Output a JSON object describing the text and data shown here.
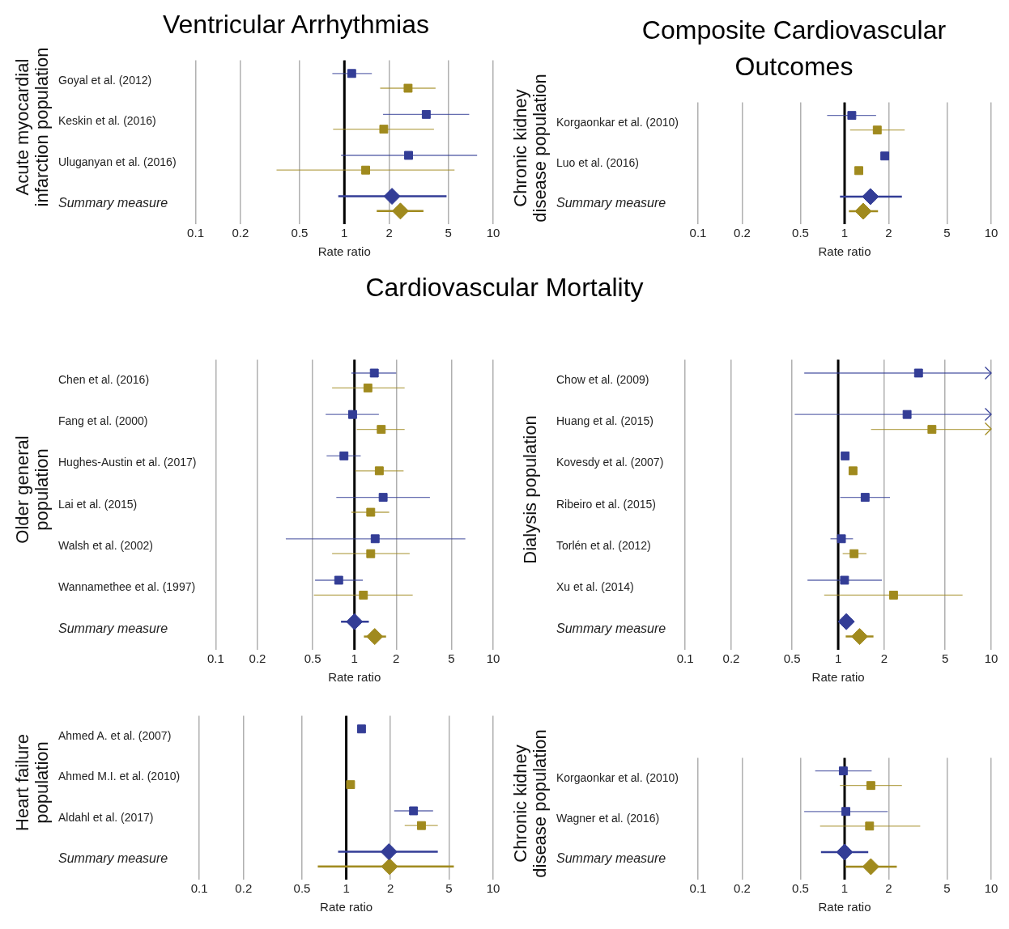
{
  "chart_data": [
    {
      "type": "scatter",
      "orientation": "horizontal",
      "title": "Ventricular Arrhythmias",
      "ylabel": "Acute myocardial infarction population",
      "xlabel": "Rate ratio",
      "log": "x",
      "grid": "x",
      "xlim": [
        0.1,
        10
      ],
      "xticks": [
        0.1,
        0.2,
        0.5,
        1,
        2,
        5,
        10
      ],
      "ref_lines": [
        {
          "axis": "x",
          "value": 1
        }
      ],
      "categories": [
        "Goyal et al. (2012)",
        "Keskin et al. (2016)",
        "Uluganyan et al. (2016)",
        "Summary measure"
      ],
      "series": [
        {
          "color": "#333d96",
          "marker": "square",
          "values": [
            1.12,
            3.55,
            2.7,
            null
          ],
          "errors": [
            [
              0.83,
              1.53
            ],
            [
              1.82,
              6.9
            ],
            [
              0.95,
              7.8
            ],
            null
          ]
        },
        {
          "color": "#a08a1e",
          "marker": "square",
          "values": [
            2.68,
            1.84,
            1.39,
            null
          ],
          "errors": [
            [
              1.74,
              4.1
            ],
            [
              0.84,
              4.0
            ],
            [
              0.35,
              5.5
            ],
            null
          ]
        },
        {
          "color": "#333d96",
          "marker": "diamond",
          "values": [
            null,
            null,
            null,
            2.09
          ],
          "errors": [
            null,
            null,
            null,
            [
              0.91,
              4.86
            ]
          ]
        },
        {
          "color": "#a08a1e",
          "marker": "diamond",
          "values": [
            null,
            null,
            null,
            2.38
          ],
          "errors": [
            null,
            null,
            null,
            [
              1.65,
              3.4
            ]
          ]
        }
      ]
    },
    {
      "type": "scatter",
      "orientation": "horizontal",
      "title": "Composite Cardiovascular Outcomes",
      "ylabel": "Chronic kidney disease population",
      "xlabel": "Rate ratio",
      "log": "x",
      "grid": "x",
      "xlim": [
        0.1,
        10
      ],
      "xticks": [
        0.1,
        0.2,
        0.5,
        1,
        2,
        5,
        10
      ],
      "ref_lines": [
        {
          "axis": "x",
          "value": 1
        }
      ],
      "categories": [
        "Korgaonkar et al. (2010)",
        "Luo et al. (2016)",
        "Summary measure"
      ],
      "series": [
        {
          "color": "#333d96",
          "marker": "square",
          "values": [
            1.12,
            1.88,
            null
          ],
          "errors": [
            [
              0.76,
              1.64
            ],
            null,
            null
          ]
        },
        {
          "color": "#a08a1e",
          "marker": "square",
          "values": [
            1.67,
            1.25,
            null
          ],
          "errors": [
            [
              1.09,
              2.57
            ],
            null,
            null
          ]
        },
        {
          "color": "#333d96",
          "marker": "diamond",
          "values": [
            null,
            null,
            1.5
          ],
          "errors": [
            null,
            null,
            [
              0.93,
              2.46
            ]
          ]
        },
        {
          "color": "#a08a1e",
          "marker": "diamond",
          "values": [
            null,
            null,
            1.34
          ],
          "errors": [
            null,
            null,
            [
              1.07,
              1.69
            ]
          ]
        }
      ]
    },
    {
      "type": "scatter",
      "orientation": "horizontal",
      "title": "Cardiovascular Mortality",
      "ylabel": "Older general population",
      "xlabel": "Rate ratio",
      "log": "x",
      "grid": "x",
      "xlim": [
        0.1,
        10
      ],
      "xticks": [
        0.1,
        0.2,
        0.5,
        1,
        2,
        5,
        10
      ],
      "ref_lines": [
        {
          "axis": "x",
          "value": 1
        }
      ],
      "categories": [
        "Chen et al. (2016)",
        "Fang et al. (2000)",
        "Hughes-Austin et al. (2017)",
        "Lai et al. (2015)",
        "Walsh et al. (2002)",
        "Wannamethee et al. (1997)",
        "Summary measure"
      ],
      "series": [
        {
          "color": "#333d96",
          "marker": "square",
          "values": [
            1.39,
            0.97,
            0.84,
            1.61,
            1.41,
            0.77,
            null
          ],
          "errors": [
            [
              0.95,
              2.0
            ],
            [
              0.62,
              1.5
            ],
            [
              0.63,
              1.11
            ],
            [
              0.74,
              3.5
            ],
            [
              0.32,
              6.3
            ],
            [
              0.52,
              1.15
            ],
            null
          ]
        },
        {
          "color": "#a08a1e",
          "marker": "square",
          "values": [
            1.25,
            1.56,
            1.51,
            1.31,
            1.31,
            1.16,
            null
          ],
          "errors": [
            [
              0.69,
              2.3
            ],
            [
              1.04,
              2.3
            ],
            [
              1.01,
              2.26
            ],
            [
              0.95,
              1.78
            ],
            [
              0.69,
              2.5
            ],
            [
              0.51,
              2.63
            ],
            null
          ]
        },
        {
          "color": "#333d96",
          "marker": "diamond",
          "values": [
            null,
            null,
            null,
            null,
            null,
            null,
            1.0
          ],
          "errors": [
            null,
            null,
            null,
            null,
            null,
            null,
            [
              0.8,
              1.27
            ]
          ]
        },
        {
          "color": "#a08a1e",
          "marker": "diamond",
          "values": [
            null,
            null,
            null,
            null,
            null,
            null,
            1.4
          ],
          "errors": [
            null,
            null,
            null,
            null,
            null,
            null,
            [
              1.17,
              1.69
            ]
          ]
        }
      ]
    },
    {
      "type": "scatter",
      "orientation": "horizontal",
      "ylabel": "Dialysis population",
      "xlabel": "Rate ratio",
      "log": "x",
      "grid": "x",
      "xlim": [
        0.1,
        10
      ],
      "xticks": [
        0.1,
        0.2,
        0.5,
        1,
        2,
        5,
        10
      ],
      "ref_lines": [
        {
          "axis": "x",
          "value": 1
        }
      ],
      "categories": [
        "Chow et al. (2009)",
        "Huang et al. (2015)",
        "Kovesdy et al. (2007)",
        "Ribeiro et al. (2015)",
        "Torlén et al. (2012)",
        "Xu et al. (2014)",
        "Summary measure"
      ],
      "series": [
        {
          "color": "#333d96",
          "marker": "square",
          "values": [
            3.35,
            2.82,
            1.11,
            1.5,
            1.05,
            1.1,
            null
          ],
          "errors": [
            [
              0.6,
              10
            ],
            [
              0.52,
              10
            ],
            null,
            [
              1.03,
              2.18
            ],
            [
              0.89,
              1.25
            ],
            [
              0.63,
              1.93
            ],
            null
          ]
        },
        {
          "color": "#a08a1e",
          "marker": "square",
          "values": [
            null,
            4.1,
            1.25,
            null,
            1.27,
            2.3,
            null
          ],
          "errors": [
            null,
            [
              1.64,
              10
            ],
            null,
            null,
            [
              1.07,
              1.53
            ],
            [
              0.81,
              6.5
            ],
            null
          ]
        },
        {
          "color": "#333d96",
          "marker": "diamond",
          "values": [
            null,
            null,
            null,
            null,
            null,
            null,
            1.13
          ],
          "errors": [
            null,
            null,
            null,
            null,
            null,
            null,
            [
              1.05,
              1.23
            ]
          ]
        },
        {
          "color": "#a08a1e",
          "marker": "diamond",
          "values": [
            null,
            null,
            null,
            null,
            null,
            null,
            1.38
          ],
          "errors": [
            null,
            null,
            null,
            null,
            null,
            null,
            [
              1.12,
              1.7
            ]
          ]
        }
      ]
    },
    {
      "type": "scatter",
      "orientation": "horizontal",
      "ylabel": "Heart failure population",
      "xlabel": "Rate ratio",
      "log": "x",
      "grid": "x",
      "xlim": [
        0.1,
        10
      ],
      "xticks": [
        0.1,
        0.2,
        0.5,
        1,
        2,
        5,
        10
      ],
      "ref_lines": [
        {
          "axis": "x",
          "value": 1
        }
      ],
      "categories": [
        "Ahmed A. et al. (2007)",
        "Ahmed M.I. et al. (2010)",
        "Aldahl et al. (2017)",
        "Summary measure"
      ],
      "series": [
        {
          "color": "#333d96",
          "marker": "square",
          "values": [
            1.27,
            null,
            2.87,
            null
          ],
          "errors": [
            null,
            null,
            [
              2.12,
              3.9
            ],
            null
          ]
        },
        {
          "color": "#a08a1e",
          "marker": "square",
          "values": [
            null,
            1.07,
            3.25,
            null
          ],
          "errors": [
            null,
            null,
            [
              2.5,
              4.2
            ],
            null
          ]
        },
        {
          "color": "#333d96",
          "marker": "diamond",
          "values": [
            null,
            null,
            null,
            1.95
          ],
          "errors": [
            null,
            null,
            null,
            [
              0.88,
              4.2
            ]
          ]
        },
        {
          "color": "#a08a1e",
          "marker": "diamond",
          "values": [
            null,
            null,
            null,
            1.97
          ],
          "errors": [
            null,
            null,
            null,
            [
              0.64,
              5.4
            ]
          ]
        }
      ]
    },
    {
      "type": "scatter",
      "orientation": "horizontal",
      "ylabel": "Chronic kidney disease population",
      "xlabel": "Rate ratio",
      "log": "x",
      "grid": "x",
      "xlim": [
        0.1,
        10
      ],
      "xticks": [
        0.1,
        0.2,
        0.5,
        1,
        2,
        5,
        10
      ],
      "ref_lines": [
        {
          "axis": "x",
          "value": 1
        }
      ],
      "categories": [
        "Korgaonkar et al. (2010)",
        "Wagner et al. (2016)",
        "Summary measure"
      ],
      "series": [
        {
          "color": "#333d96",
          "marker": "square",
          "values": [
            0.98,
            1.02,
            null
          ],
          "errors": [
            [
              0.63,
              1.53
            ],
            [
              0.53,
              1.97
            ],
            null
          ]
        },
        {
          "color": "#a08a1e",
          "marker": "square",
          "values": [
            1.51,
            1.48,
            null
          ],
          "errors": [
            [
              0.93,
              2.46
            ],
            [
              0.68,
              3.28
            ],
            null
          ]
        },
        {
          "color": "#333d96",
          "marker": "diamond",
          "values": [
            null,
            null,
            1.0
          ],
          "errors": [
            null,
            null,
            [
              0.69,
              1.45
            ]
          ]
        },
        {
          "color": "#a08a1e",
          "marker": "diamond",
          "values": [
            null,
            null,
            1.51
          ],
          "errors": [
            null,
            null,
            [
              1.01,
              2.27
            ]
          ]
        }
      ]
    }
  ]
}
